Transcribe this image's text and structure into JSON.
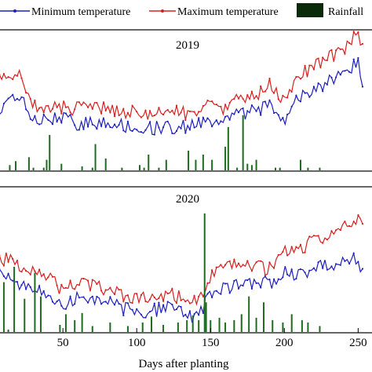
{
  "legend": {
    "min_label": "Minimum temperature",
    "max_label": "Maximum temperature",
    "rain_label": "Rainfall"
  },
  "colors": {
    "min": "#1f1fbf",
    "max": "#d92020",
    "rain": "#1f6b1f",
    "legend_rain": "#0a2a0a"
  },
  "chart_data": [
    {
      "type": "line",
      "title": "2019",
      "xlabel": "Days after planting",
      "xlim": [
        1,
        253
      ],
      "series": [
        {
          "name": "Minimum temperature",
          "x": [
            1,
            10,
            20,
            30,
            40,
            50,
            60,
            70,
            80,
            90,
            100,
            110,
            120,
            130,
            140,
            150,
            160,
            170,
            180,
            190,
            200,
            210,
            220,
            230,
            240,
            250,
            253
          ],
          "values": [
            0.38,
            0.35,
            0.48,
            0.28,
            0.26,
            0.3,
            0.24,
            0.25,
            0.27,
            0.23,
            0.22,
            0.2,
            0.23,
            0.21,
            0.25,
            0.28,
            0.25,
            0.32,
            0.34,
            0.42,
            0.28,
            0.45,
            0.53,
            0.58,
            0.64,
            0.75,
            0.6
          ]
        },
        {
          "name": "Maximum temperature",
          "x": [
            1,
            10,
            20,
            30,
            40,
            50,
            60,
            70,
            80,
            90,
            100,
            110,
            120,
            130,
            140,
            150,
            160,
            170,
            180,
            190,
            200,
            210,
            220,
            230,
            240,
            250,
            253
          ],
          "values": [
            0.58,
            0.62,
            0.64,
            0.4,
            0.36,
            0.38,
            0.36,
            0.37,
            0.38,
            0.34,
            0.33,
            0.3,
            0.36,
            0.32,
            0.35,
            0.38,
            0.36,
            0.45,
            0.46,
            0.56,
            0.42,
            0.62,
            0.72,
            0.78,
            0.86,
            0.98,
            0.86
          ]
        },
        {
          "name": "Rainfall",
          "x": [
            3,
            14,
            18,
            27,
            30,
            37,
            39,
            41,
            49,
            63,
            70,
            72,
            79,
            90,
            102,
            105,
            108,
            115,
            120,
            135,
            140,
            145,
            151,
            160,
            162,
            168,
            172,
            175,
            178,
            181,
            194,
            197,
            211,
            216,
            224
          ],
          "values": [
            0.05,
            0.04,
            0.07,
            0.1,
            0.02,
            0.02,
            0.08,
            0.27,
            0.05,
            0.03,
            0.02,
            0.2,
            0.09,
            0.02,
            0.04,
            0.02,
            0.12,
            0.02,
            0.08,
            0.15,
            0.08,
            0.12,
            0.08,
            0.18,
            0.33,
            0.02,
            0.42,
            0.05,
            0.04,
            0.08,
            0.02,
            0.02,
            0.08,
            0.02,
            0.02
          ]
        }
      ]
    },
    {
      "type": "line",
      "title": "2020",
      "xlabel": "Days after planting",
      "xlim": [
        1,
        253
      ],
      "xticks": [
        50,
        100,
        150,
        200,
        250
      ],
      "series": [
        {
          "name": "Minimum temperature",
          "x": [
            1,
            10,
            20,
            30,
            40,
            50,
            60,
            70,
            80,
            90,
            100,
            110,
            120,
            130,
            140,
            150,
            160,
            170,
            180,
            190,
            200,
            210,
            220,
            230,
            240,
            250,
            253
          ],
          "values": [
            0.46,
            0.42,
            0.36,
            0.3,
            0.25,
            0.16,
            0.25,
            0.22,
            0.2,
            0.14,
            0.13,
            0.12,
            0.15,
            0.12,
            0.05,
            0.26,
            0.32,
            0.35,
            0.36,
            0.35,
            0.44,
            0.42,
            0.48,
            0.5,
            0.53,
            0.55,
            0.46
          ]
        },
        {
          "name": "Maximum temperature",
          "x": [
            1,
            10,
            20,
            30,
            40,
            50,
            60,
            70,
            80,
            90,
            100,
            110,
            120,
            130,
            140,
            150,
            160,
            170,
            180,
            190,
            200,
            210,
            220,
            230,
            240,
            250,
            253
          ],
          "values": [
            0.62,
            0.56,
            0.5,
            0.48,
            0.42,
            0.28,
            0.37,
            0.33,
            0.3,
            0.25,
            0.22,
            0.22,
            0.26,
            0.24,
            0.2,
            0.4,
            0.48,
            0.52,
            0.5,
            0.47,
            0.62,
            0.63,
            0.72,
            0.74,
            0.81,
            0.88,
            0.8
          ]
        },
        {
          "name": "Rainfall",
          "x": [
            3,
            6,
            10,
            13,
            17,
            24,
            31,
            35,
            48,
            52,
            58,
            63,
            70,
            82,
            94,
            104,
            110,
            118,
            128,
            134,
            138,
            142,
            146,
            147,
            150,
            156,
            160,
            166,
            171,
            176,
            181,
            186,
            192,
            199,
            205,
            212,
            216,
            224
          ],
          "values": [
            0.35,
            0.6,
            0.42,
            0.02,
            0.55,
            0.28,
            0.5,
            0.3,
            0.06,
            0.15,
            0.1,
            0.16,
            0.05,
            0.08,
            0.05,
            0.08,
            0.13,
            0.06,
            0.08,
            0.1,
            0.14,
            0.1,
            1.0,
            0.25,
            0.1,
            0.12,
            0.08,
            0.1,
            0.15,
            0.3,
            0.12,
            0.25,
            0.1,
            0.08,
            0.15,
            0.1,
            0.08,
            0.05
          ]
        }
      ]
    }
  ]
}
